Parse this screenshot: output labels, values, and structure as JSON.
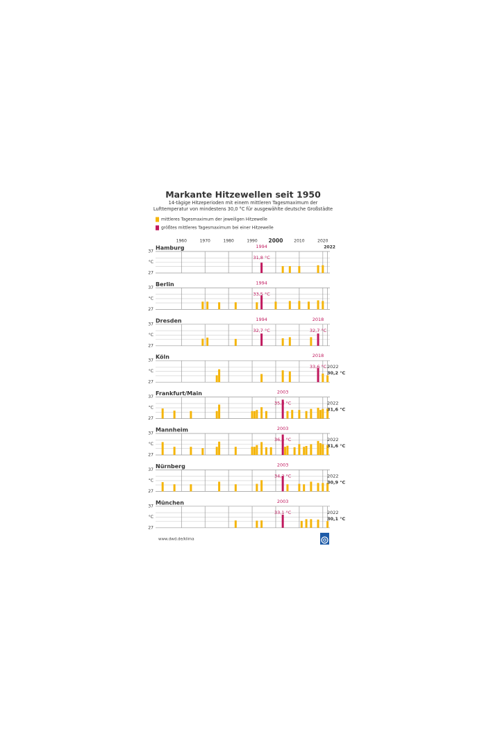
{
  "header": {
    "title": "Markante Hitzewellen seit 1950",
    "subtitle": [
      "14-tägige Hitzeperioden mit einem mittleren Tagesmaximum der",
      "Lufttemperatur von mindestens 30,0 °C für ausgewählte deutsche Großstädte"
    ]
  },
  "legend": [
    {
      "label": "mittleres Tagesmaximum der jeweiligen Hitzewelle",
      "color": "#f5b50a"
    },
    {
      "label": "größtes mittleres Tagesmaximum bei einer Hitzewelle",
      "color": "#c0185d"
    }
  ],
  "axis": {
    "xlim": [
      1949,
      2023
    ],
    "xticks": [
      1960,
      1970,
      1980,
      1990,
      2000,
      2010,
      2020,
      2022
    ],
    "bold_xtick": 2000,
    "ylim": [
      27,
      37
    ],
    "yticks": [
      27,
      37
    ],
    "grid_y": [
      30,
      32,
      34
    ],
    "y_unit": "°C"
  },
  "footer": "www.dwd.de/klima",
  "chart_data": [
    {
      "type": "bar",
      "title": "Hamburg",
      "x": [
        1994,
        2003,
        2006,
        2010,
        2018,
        2020
      ],
      "values": [
        31.8,
        30.2,
        30.2,
        30.2,
        30.6,
        30.6
      ],
      "value_labels": [
        "31,8 °C",
        null,
        null,
        null,
        null,
        null
      ],
      "highlight": [
        true,
        false,
        false,
        false,
        false,
        false
      ]
    },
    {
      "type": "bar",
      "title": "Berlin",
      "x": [
        1969,
        1971,
        1976,
        1983,
        1992,
        1994,
        2000,
        2006,
        2010,
        2014,
        2018,
        2020
      ],
      "values": [
        30.6,
        30.6,
        30.3,
        30.3,
        30.3,
        33.5,
        30.6,
        30.9,
        30.9,
        30.6,
        31.2,
        30.9
      ],
      "value_labels": [
        null,
        null,
        null,
        null,
        null,
        "33,5 °C",
        null,
        null,
        null,
        null,
        null,
        null
      ],
      "highlight": [
        false,
        false,
        false,
        false,
        false,
        true,
        false,
        false,
        false,
        false,
        false,
        false
      ]
    },
    {
      "type": "bar",
      "title": "Dresden",
      "x": [
        1969,
        1971,
        1983,
        1994,
        2003,
        2006,
        2015,
        2018
      ],
      "values": [
        30.3,
        30.8,
        30.2,
        32.7,
        30.5,
        31.0,
        31.0,
        32.7
      ],
      "value_labels": [
        null,
        null,
        null,
        "32,7 °C",
        null,
        null,
        null,
        "32,7 °C"
      ],
      "highlight": [
        false,
        false,
        false,
        true,
        false,
        false,
        false,
        true
      ]
    },
    {
      "type": "bar",
      "title": "Köln",
      "x": [
        1975,
        1976,
        1994,
        2003,
        2006,
        2018,
        2020,
        2022
      ],
      "values": [
        30.2,
        33.0,
        30.8,
        32.5,
        32.0,
        33.6,
        31.0,
        30.2
      ],
      "value_labels": [
        null,
        null,
        null,
        null,
        null,
        "33,6 °C",
        null,
        "30,2 °C"
      ],
      "highlight": [
        false,
        false,
        false,
        false,
        false,
        true,
        false,
        false
      ]
    },
    {
      "type": "bar",
      "title": "Frankfurt/Main",
      "x": [
        1952,
        1957,
        1964,
        1975,
        1976,
        1990,
        1991,
        1992,
        1994,
        1996,
        2003,
        2005,
        2007,
        2010,
        2013,
        2015,
        2018,
        2019,
        2020,
        2022
      ],
      "values": [
        31.7,
        30.7,
        30.5,
        30.5,
        33.5,
        30.5,
        30.5,
        31.0,
        32.3,
        30.5,
        35.8,
        30.5,
        31.0,
        31.0,
        30.5,
        31.5,
        32.0,
        31.0,
        31.5,
        31.6
      ],
      "value_labels": [
        null,
        null,
        null,
        null,
        null,
        null,
        null,
        null,
        null,
        null,
        "35,8 °C",
        null,
        null,
        null,
        null,
        null,
        null,
        null,
        null,
        "31,6 °C"
      ],
      "highlight": [
        false,
        false,
        false,
        false,
        false,
        false,
        false,
        false,
        false,
        false,
        true,
        false,
        false,
        false,
        false,
        false,
        false,
        false,
        false,
        false
      ]
    },
    {
      "type": "bar",
      "title": "Mannheim",
      "x": [
        1952,
        1957,
        1964,
        1969,
        1975,
        1976,
        1983,
        1990,
        1991,
        1992,
        1994,
        1996,
        1998,
        2003,
        2004,
        2005,
        2008,
        2010,
        2012,
        2013,
        2015,
        2018,
        2019,
        2020,
        2022
      ],
      "values": [
        33.0,
        30.8,
        30.8,
        30.2,
        30.8,
        33.2,
        30.8,
        30.8,
        30.8,
        31.6,
        33.0,
        30.6,
        30.6,
        36.5,
        30.8,
        31.3,
        30.6,
        32.0,
        30.8,
        31.2,
        32.0,
        33.5,
        32.5,
        32.0,
        31.6
      ],
      "value_labels": [
        null,
        null,
        null,
        null,
        null,
        null,
        null,
        null,
        null,
        null,
        null,
        null,
        null,
        "36,5 °C",
        null,
        null,
        null,
        null,
        null,
        null,
        null,
        null,
        null,
        null,
        "31,6 °C"
      ],
      "highlight": [
        false,
        false,
        false,
        false,
        false,
        false,
        false,
        false,
        false,
        false,
        false,
        false,
        false,
        true,
        false,
        false,
        false,
        false,
        false,
        false,
        false,
        false,
        false,
        false,
        false
      ]
    },
    {
      "type": "bar",
      "title": "Nürnberg",
      "x": [
        1952,
        1957,
        1964,
        1976,
        1983,
        1992,
        1994,
        2003,
        2005,
        2010,
        2012,
        2015,
        2018,
        2020,
        2022
      ],
      "values": [
        31.3,
        30.3,
        30.3,
        31.5,
        30.3,
        30.5,
        32.2,
        34.2,
        30.3,
        30.5,
        30.3,
        31.5,
        30.9,
        30.9,
        30.9
      ],
      "value_labels": [
        null,
        null,
        null,
        null,
        null,
        null,
        null,
        "34,2 °C",
        null,
        null,
        null,
        null,
        null,
        null,
        "30,9 °C"
      ],
      "highlight": [
        false,
        false,
        false,
        false,
        false,
        false,
        false,
        true,
        false,
        false,
        false,
        false,
        false,
        false,
        false
      ]
    },
    {
      "type": "bar",
      "title": "München",
      "x": [
        1983,
        1992,
        1994,
        2003,
        2011,
        2013,
        2015,
        2018,
        2022
      ],
      "values": [
        30.4,
        30.3,
        30.4,
        33.1,
        30.2,
        31.0,
        31.0,
        30.8,
        30.1
      ],
      "value_labels": [
        null,
        null,
        null,
        "33,1 °C",
        null,
        null,
        null,
        null,
        "30,1 °C"
      ],
      "highlight": [
        false,
        false,
        false,
        true,
        false,
        false,
        false,
        false,
        false
      ]
    }
  ]
}
